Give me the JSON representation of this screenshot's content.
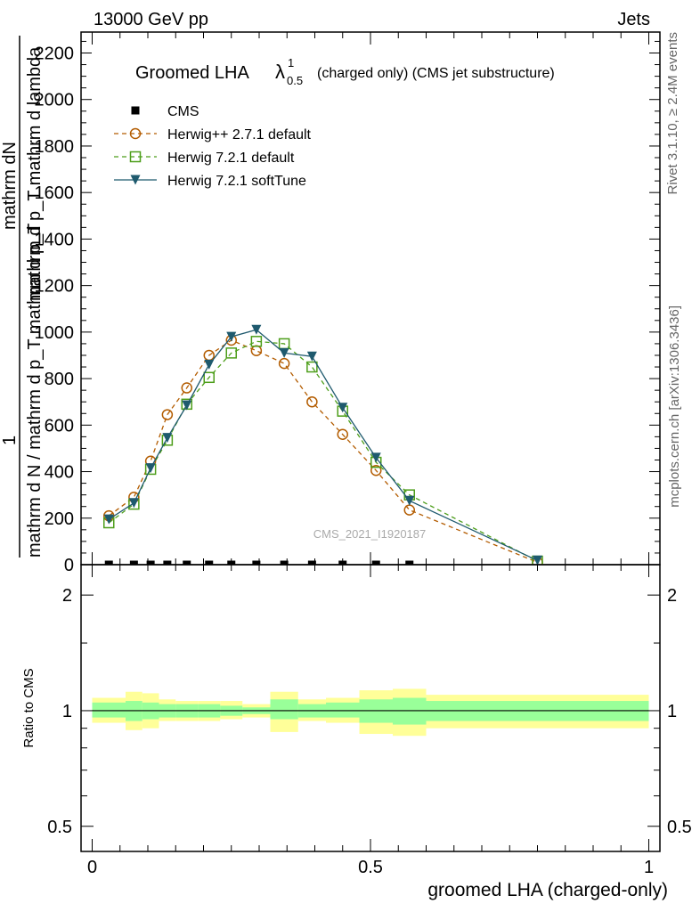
{
  "header": {
    "left": "13000 GeV pp",
    "right": "Jets"
  },
  "side": {
    "rivet": "Rivet 3.1.10, ≥ 2.4M events",
    "mcplots": "mcplots.cern.ch [arXiv:1306.3436]"
  },
  "watermark": "CMS_2021_I1920187",
  "title": {
    "main": "Groomed LHA",
    "lambda": "λ",
    "sup": "1",
    "sub": "0.5",
    "rest": "(charged only) (CMS jet substructure)"
  },
  "ylabel": {
    "numerator": "1",
    "fraction_top": "mathrm dN",
    "fraction_bottom": "mathrm d p_T mathrm d lambda",
    "denominator_top": "mathrm d N / mathrm d p_T mathrm d p_T",
    "denominator_bottom": "mathrm d N / mathrm d p_T"
  },
  "ylabel_sub": "_T",
  "ratio_ylabel": "Ratio to CMS",
  "xlabel": "groomed LHA (charged-only)",
  "chart_data": [
    {
      "type": "line",
      "xlim": [
        -0.02,
        1.02
      ],
      "ylim": [
        0,
        2290
      ],
      "yticks": [
        0,
        200,
        400,
        600,
        800,
        1000,
        1200,
        1400,
        1600,
        1800,
        2000,
        2200
      ],
      "ytick_labels": [
        "0",
        "200",
        "400",
        "600",
        "800",
        "1000",
        "1200",
        "1400",
        "1600",
        "1800",
        "2000",
        "2200"
      ],
      "x": [
        0.03,
        0.075,
        0.105,
        0.135,
        0.17,
        0.21,
        0.25,
        0.295,
        0.345,
        0.395,
        0.45,
        0.51,
        0.57,
        0.8
      ],
      "series": [
        {
          "name": "CMS",
          "marker": "square-filled",
          "color": "#000000",
          "dash": "",
          "values": [
            0,
            0,
            0,
            0,
            0,
            0,
            0,
            0,
            0,
            0,
            0,
            0,
            0,
            null
          ]
        },
        {
          "name": "Herwig++ 2.7.1 default",
          "marker": "circle-open",
          "color": "#b35c00",
          "dash": "5,4",
          "values": [
            210,
            290,
            445,
            645,
            760,
            900,
            965,
            920,
            865,
            700,
            560,
            405,
            235,
            10
          ]
        },
        {
          "name": "Herwig 7.2.1 default",
          "marker": "square-open",
          "color": "#4d9e1a",
          "dash": "5,4",
          "values": [
            180,
            260,
            410,
            535,
            690,
            805,
            910,
            960,
            950,
            850,
            660,
            440,
            300,
            15
          ]
        },
        {
          "name": "Herwig 7.2.1 softTune",
          "marker": "triangle-down",
          "color": "#1f5a6e",
          "dash": "",
          "values": [
            195,
            265,
            415,
            545,
            685,
            860,
            980,
            1010,
            910,
            895,
            675,
            460,
            275,
            18
          ]
        }
      ],
      "legend_position": "top-left"
    },
    {
      "type": "area",
      "xlim": [
        -0.02,
        1.02
      ],
      "ylim": [
        0.43,
        2.4
      ],
      "log_y": true,
      "yticks": [
        0.5,
        1,
        2
      ],
      "ytick_labels": [
        "0.5",
        "1",
        "2"
      ],
      "xticks": [
        0,
        0.5,
        1
      ],
      "xtick_labels": [
        "0",
        "0.5",
        "1"
      ],
      "bins": [
        {
          "x0": 0.0,
          "x1": 0.06,
          "y68": [
            0.96,
            1.05
          ],
          "y95": [
            0.93,
            1.08
          ]
        },
        {
          "x0": 0.06,
          "x1": 0.09,
          "y68": [
            0.94,
            1.06
          ],
          "y95": [
            0.89,
            1.12
          ]
        },
        {
          "x0": 0.09,
          "x1": 0.12,
          "y68": [
            0.95,
            1.05
          ],
          "y95": [
            0.9,
            1.11
          ]
        },
        {
          "x0": 0.12,
          "x1": 0.15,
          "y68": [
            0.96,
            1.04
          ],
          "y95": [
            0.94,
            1.07
          ]
        },
        {
          "x0": 0.15,
          "x1": 0.19,
          "y68": [
            0.96,
            1.04
          ],
          "y95": [
            0.94,
            1.06
          ]
        },
        {
          "x0": 0.19,
          "x1": 0.23,
          "y68": [
            0.96,
            1.04
          ],
          "y95": [
            0.94,
            1.06
          ]
        },
        {
          "x0": 0.23,
          "x1": 0.27,
          "y68": [
            0.97,
            1.03
          ],
          "y95": [
            0.95,
            1.06
          ]
        },
        {
          "x0": 0.27,
          "x1": 0.32,
          "y68": [
            0.98,
            1.02
          ],
          "y95": [
            0.96,
            1.04
          ]
        },
        {
          "x0": 0.32,
          "x1": 0.37,
          "y68": [
            0.95,
            1.07
          ],
          "y95": [
            0.88,
            1.12
          ]
        },
        {
          "x0": 0.37,
          "x1": 0.42,
          "y68": [
            0.96,
            1.04
          ],
          "y95": [
            0.94,
            1.07
          ]
        },
        {
          "x0": 0.42,
          "x1": 0.48,
          "y68": [
            0.96,
            1.05
          ],
          "y95": [
            0.93,
            1.08
          ]
        },
        {
          "x0": 0.48,
          "x1": 0.54,
          "y68": [
            0.93,
            1.07
          ],
          "y95": [
            0.87,
            1.13
          ]
        },
        {
          "x0": 0.54,
          "x1": 0.6,
          "y68": [
            0.92,
            1.08
          ],
          "y95": [
            0.86,
            1.14
          ]
        },
        {
          "x0": 0.6,
          "x1": 1.0,
          "y68": [
            0.94,
            1.06
          ],
          "y95": [
            0.9,
            1.1
          ]
        }
      ],
      "colors": {
        "band68": "#99ff99",
        "band95": "#ffff99",
        "ref": "#000000"
      }
    }
  ]
}
